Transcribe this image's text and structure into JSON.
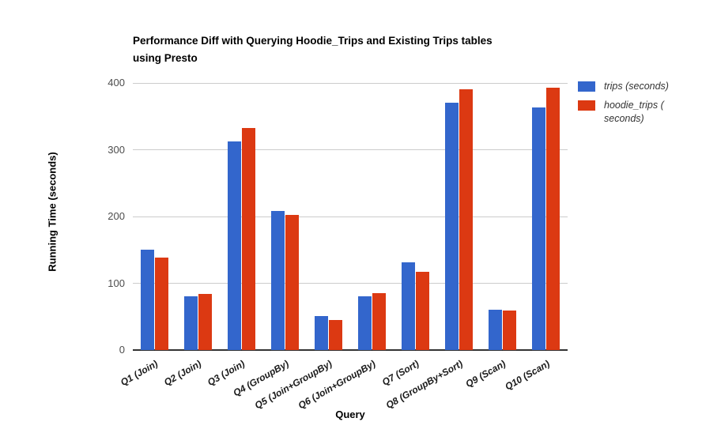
{
  "display": {
    "title": "Performance Diff with Querying Hoodie_Trips and Existing Trips tables\nusing Presto"
  },
  "chart_data": {
    "type": "bar",
    "title": "Performance Diff with Querying Hoodie_Trips and Existing Trips tables using Presto",
    "xlabel": "Query",
    "ylabel": "Running Time (seconds)",
    "ylim": [
      0,
      400
    ],
    "yticks": [
      0,
      100,
      200,
      300,
      400
    ],
    "grid": true,
    "legend_position": "right",
    "categories": [
      "Q1 (Join)",
      "Q2 (Join)",
      "Q3 (Join)",
      "Q4 (GroupBy)",
      "Q5 (Join+GroupBy)",
      "Q6 (Join+GroupBy)",
      "Q7 (Sort)",
      "Q8 (GroupBy+Sort)",
      "Q9 (Scan)",
      "Q10 (Scan)"
    ],
    "series": [
      {
        "name": "trips (seconds)",
        "color": "#3366cc",
        "values": [
          150,
          80,
          313,
          208,
          51,
          81,
          131,
          371,
          60,
          363
        ]
      },
      {
        "name": "hoodie_trips (seconds)",
        "color": "#dc3912",
        "values": [
          138,
          84,
          332,
          202,
          45,
          85,
          117,
          390,
          59,
          393
        ]
      }
    ]
  },
  "legend": {
    "items": [
      {
        "label": "trips (seconds)",
        "color": "#3366cc"
      },
      {
        "label": "hoodie_trips (\nseconds)",
        "color": "#dc3912"
      }
    ]
  },
  "colors": {
    "series_blue": "#3366cc",
    "series_red": "#dc3912",
    "gridline": "#cccccc",
    "axis_line": "#333333"
  }
}
